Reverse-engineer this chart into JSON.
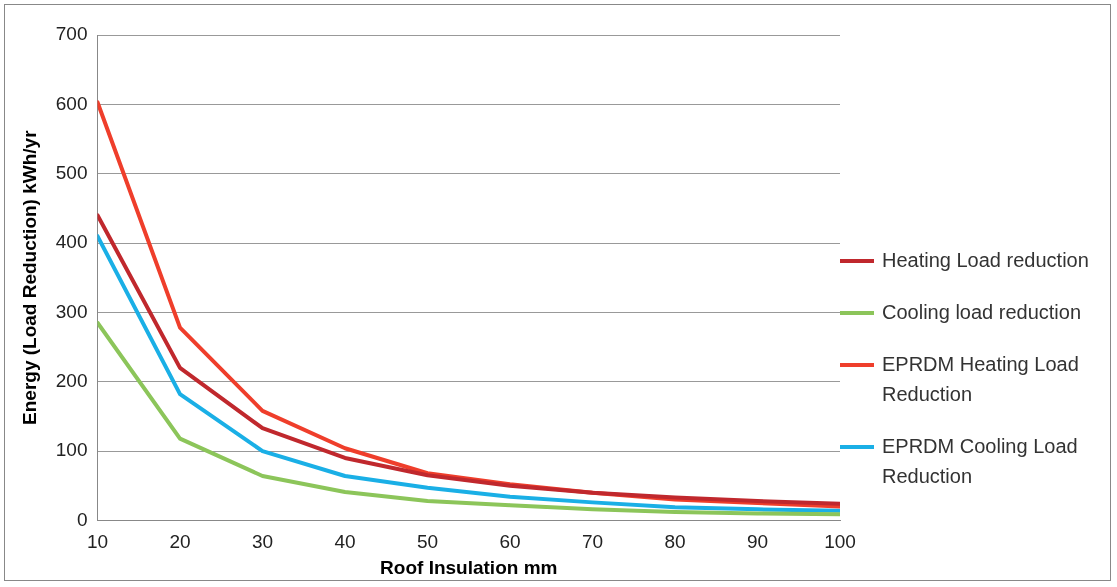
{
  "chart_data": {
    "type": "line",
    "xlabel": "Roof Insulation mm",
    "ylabel": "Energy (Load Reduction) kWh/yr",
    "x": [
      10,
      20,
      30,
      40,
      50,
      60,
      70,
      80,
      90,
      100
    ],
    "xlim": [
      10,
      100
    ],
    "xticks": [
      10,
      20,
      30,
      40,
      50,
      60,
      70,
      80,
      90,
      100
    ],
    "ylim": [
      0,
      700
    ],
    "yticks": [
      0,
      100,
      200,
      300,
      400,
      500,
      600,
      700
    ],
    "grid": "y",
    "legend": "right",
    "marker": "none",
    "line_style": "solid",
    "series": [
      {
        "name": "Heating Load reduction",
        "color": "#c0282d",
        "values": [
          440,
          220,
          133,
          90,
          65,
          50,
          40,
          33,
          28,
          24
        ]
      },
      {
        "name": "Cooling load reduction",
        "color": "#8cc55a",
        "values": [
          285,
          118,
          64,
          41,
          28,
          22,
          16,
          12,
          10,
          9
        ]
      },
      {
        "name": "EPRDM Heating Load Reduction",
        "color": "#ef3e2b",
        "values": [
          603,
          278,
          158,
          104,
          68,
          52,
          40,
          30,
          25,
          20
        ]
      },
      {
        "name": "EPRDM Cooling Load Reduction",
        "color": "#1aafe6",
        "values": [
          410,
          182,
          100,
          64,
          47,
          34,
          26,
          19,
          16,
          14
        ]
      }
    ]
  }
}
